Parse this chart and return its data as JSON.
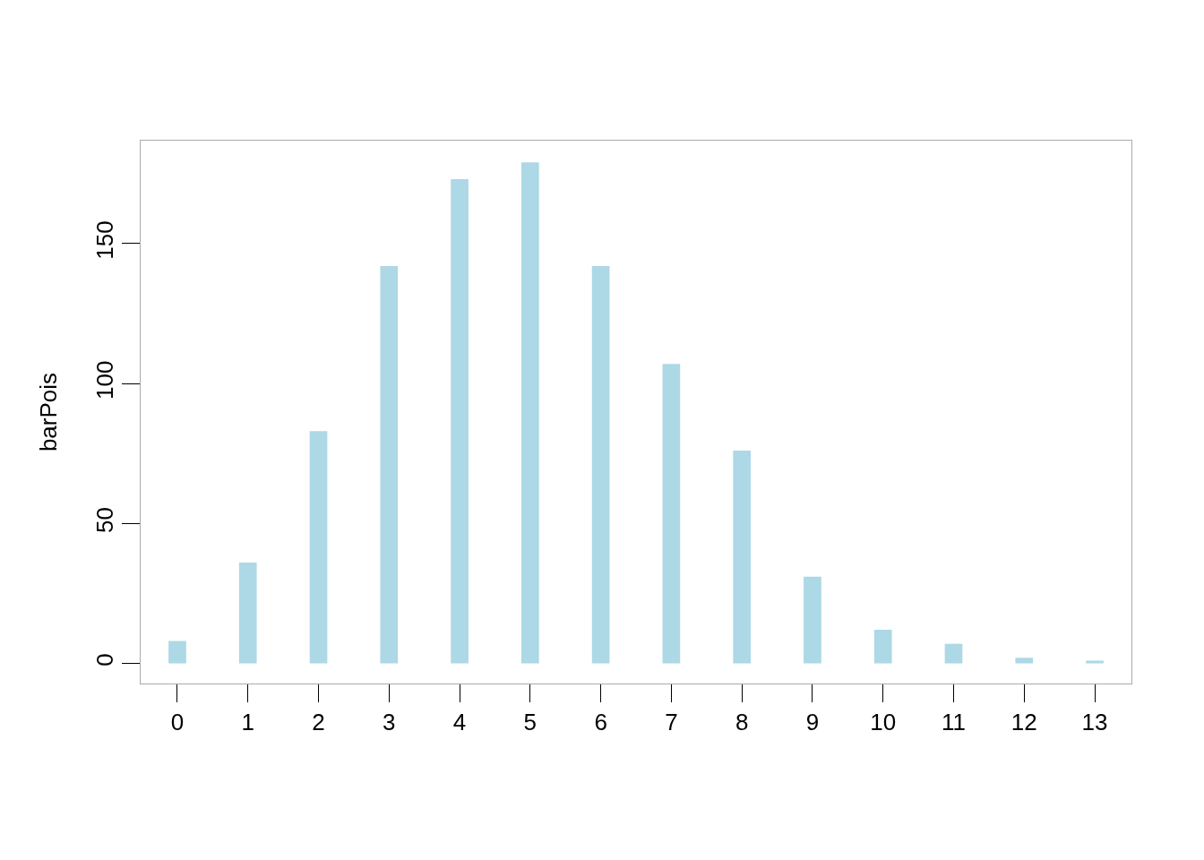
{
  "chart_data": {
    "type": "bar",
    "ylabel": "barPois",
    "x": [
      0,
      1,
      2,
      3,
      4,
      5,
      6,
      7,
      8,
      9,
      10,
      11,
      12,
      13
    ],
    "values": [
      8,
      36,
      83,
      142,
      173,
      179,
      142,
      107,
      76,
      31,
      12,
      7,
      2,
      1
    ],
    "color": "#add8e6",
    "xlim": [
      -0.52,
      13.52
    ],
    "xticks": [
      0,
      1,
      2,
      3,
      4,
      5,
      6,
      7,
      8,
      9,
      10,
      11,
      12,
      13
    ],
    "ylim": [
      -7.2,
      186.8
    ],
    "yticks": [
      0,
      50,
      100,
      150
    ]
  }
}
